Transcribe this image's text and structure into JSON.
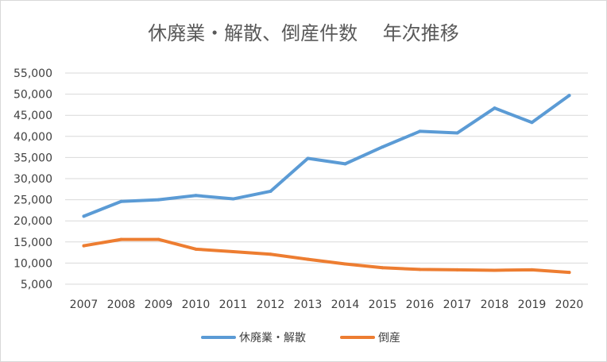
{
  "chart_data": {
    "type": "line",
    "title": "休廃業・解散、倒産件数　 年次推移",
    "x": [
      "2007",
      "2008",
      "2009",
      "2010",
      "2011",
      "2012",
      "2013",
      "2014",
      "2015",
      "2016",
      "2017",
      "2018",
      "2019",
      "2020"
    ],
    "yticks": [
      "5,000",
      "10,000",
      "15,000",
      "20,000",
      "25,000",
      "30,000",
      "35,000",
      "40,000",
      "45,000",
      "50,000",
      "55,000"
    ],
    "ylim": [
      5000,
      55000
    ],
    "grid": true,
    "legend_position": "bottom",
    "series": [
      {
        "name": "休廃業・解散",
        "color": "#5b9bd5",
        "values": [
          21100,
          24600,
          25000,
          26000,
          25200,
          27000,
          34800,
          33500,
          37500,
          41200,
          40800,
          46700,
          43300,
          49700
        ]
      },
      {
        "name": "倒産",
        "color": "#ed7d31",
        "values": [
          14100,
          15600,
          15600,
          13300,
          12700,
          12100,
          10900,
          9800,
          8900,
          8500,
          8400,
          8300,
          8400,
          7800
        ]
      }
    ]
  }
}
